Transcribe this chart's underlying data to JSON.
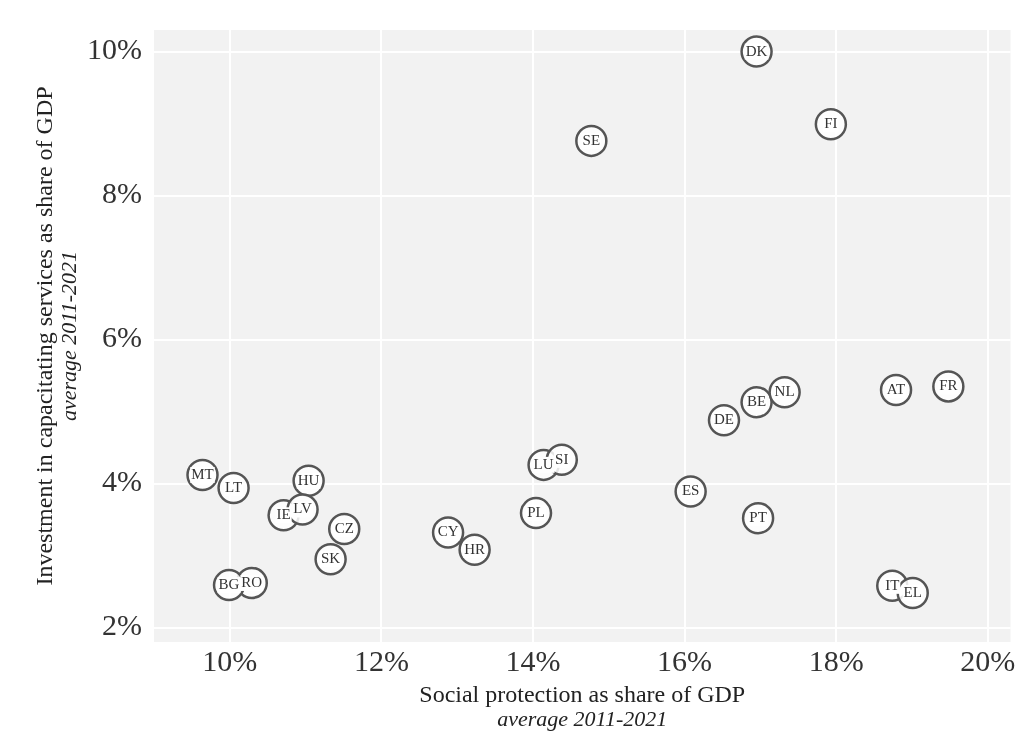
{
  "chart_data": {
    "type": "scatter",
    "xlabel": "Social protection as share of GDP\naverage 2011-2021",
    "ylabel": "Investment in capacitating services as share of GDP\naverage 2011-2021",
    "series": [
      {
        "color": "#555555",
        "x": [
          9.64,
          10.05,
          11.04,
          10.71,
          10.96,
          11.51,
          11.33,
          10.29,
          9.99,
          12.88,
          13.23,
          14.04,
          14.14,
          14.38,
          14.77,
          16.95,
          17.93,
          16.08,
          16.52,
          16.95,
          17.32,
          16.97,
          18.79,
          19.48,
          18.74,
          19.01
        ],
        "values": [
          4.12,
          3.94,
          4.04,
          3.56,
          3.64,
          3.37,
          2.95,
          2.62,
          2.59,
          3.32,
          3.08,
          3.59,
          4.26,
          4.33,
          8.76,
          10.0,
          8.99,
          3.89,
          4.88,
          5.13,
          5.27,
          3.52,
          5.3,
          5.35,
          2.58,
          2.48
        ]
      }
    ],
    "annotations": [
      {
        "text": "MT",
        "x": 9.64,
        "y": 4.12
      },
      {
        "text": "LT",
        "x": 10.05,
        "y": 3.94
      },
      {
        "text": "HU",
        "x": 11.04,
        "y": 4.04
      },
      {
        "text": "IE",
        "x": 10.71,
        "y": 3.56
      },
      {
        "text": "LV",
        "x": 10.96,
        "y": 3.64
      },
      {
        "text": "CZ",
        "x": 11.51,
        "y": 3.37
      },
      {
        "text": "SK",
        "x": 11.33,
        "y": 2.95
      },
      {
        "text": "RO",
        "x": 10.29,
        "y": 2.62
      },
      {
        "text": "BG",
        "x": 9.99,
        "y": 2.59
      },
      {
        "text": "CY",
        "x": 12.88,
        "y": 3.32
      },
      {
        "text": "HR",
        "x": 13.23,
        "y": 3.08
      },
      {
        "text": "PL",
        "x": 14.04,
        "y": 3.59
      },
      {
        "text": "LU",
        "x": 14.14,
        "y": 4.26
      },
      {
        "text": "SI",
        "x": 14.38,
        "y": 4.33
      },
      {
        "text": "SE",
        "x": 14.77,
        "y": 8.76
      },
      {
        "text": "DK",
        "x": 16.95,
        "y": 10.0
      },
      {
        "text": "FI",
        "x": 17.93,
        "y": 8.99
      },
      {
        "text": "ES",
        "x": 16.08,
        "y": 3.89
      },
      {
        "text": "DE",
        "x": 16.52,
        "y": 4.88
      },
      {
        "text": "BE",
        "x": 16.95,
        "y": 5.13
      },
      {
        "text": "NL",
        "x": 17.32,
        "y": 5.27
      },
      {
        "text": "PT",
        "x": 16.97,
        "y": 3.52
      },
      {
        "text": "AT",
        "x": 18.79,
        "y": 5.3
      },
      {
        "text": "FR",
        "x": 19.48,
        "y": 5.35
      },
      {
        "text": "IT",
        "x": 18.74,
        "y": 2.58
      },
      {
        "text": "EL",
        "x": 19.01,
        "y": 2.48
      }
    ],
    "xlim": [
      9.0,
      20.3
    ],
    "ylim": [
      1.8,
      10.3
    ],
    "xticks": [
      {
        "value": 10,
        "label": "10%"
      },
      {
        "value": 12,
        "label": "12%"
      },
      {
        "value": 14,
        "label": "14%"
      },
      {
        "value": 16,
        "label": "16%"
      },
      {
        "value": 18,
        "label": "18%"
      },
      {
        "value": 20,
        "label": "20%"
      }
    ],
    "yticks": [
      {
        "value": 2,
        "label": "2%"
      },
      {
        "value": 4,
        "label": "4%"
      },
      {
        "value": 6,
        "label": "6%"
      },
      {
        "value": 8,
        "label": "8%"
      },
      {
        "value": 10,
        "label": "10%"
      }
    ],
    "grid": true,
    "legend": false,
    "marker": "circle"
  }
}
